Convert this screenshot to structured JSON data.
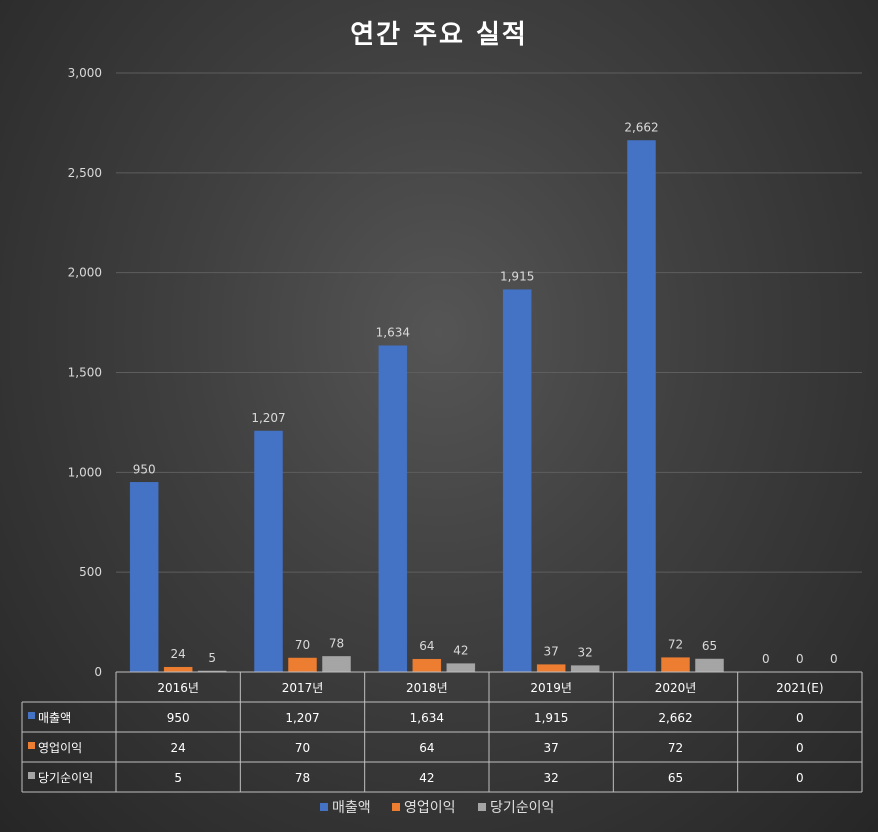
{
  "chart_data": {
    "type": "bar",
    "title": "연간 주요 실적",
    "categories": [
      "2016년",
      "2017년",
      "2018년",
      "2019년",
      "2020년",
      "2021(E)"
    ],
    "series": [
      {
        "name": "매출액",
        "values": [
          950,
          1207,
          1634,
          1915,
          2662,
          0
        ],
        "color": "#4472c4"
      },
      {
        "name": "영업이익",
        "values": [
          24,
          70,
          64,
          37,
          72,
          0
        ],
        "color": "#ed7d31"
      },
      {
        "name": "당기순이익",
        "values": [
          5,
          78,
          42,
          32,
          65,
          0
        ],
        "color": "#a5a5a5"
      }
    ],
    "ylim": [
      0,
      3000
    ],
    "yticks": [
      0,
      500,
      1000,
      1500,
      2000,
      2500,
      3000
    ],
    "ytick_labels": [
      "0",
      "500",
      "1,000",
      "1,500",
      "2,000",
      "2,500",
      "3,000"
    ],
    "grid": true,
    "legend": "bottom",
    "data_table": true
  }
}
